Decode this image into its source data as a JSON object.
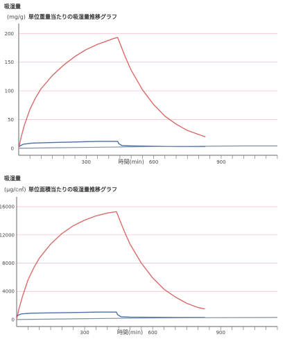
{
  "colors": {
    "red": "#d96a6a",
    "blue": "#4a6fa6",
    "gray": "#7f8fa0"
  },
  "chart_data": [
    {
      "type": "line",
      "ylabel_top": "吸湿量",
      "unit": "(mg/g)",
      "title": "単位重量当たりの吸湿量推移グラフ",
      "xlabel": "時間(min)",
      "xlim": [
        0,
        1150
      ],
      "ylim": [
        -5,
        210
      ],
      "yticks": [
        0,
        50,
        100,
        150,
        200
      ],
      "xticks": [
        300,
        600,
        900
      ],
      "series": [
        {
          "color": "red",
          "x": [
            0,
            10,
            25,
            50,
            75,
            100,
            150,
            200,
            250,
            300,
            350,
            400,
            420,
            440,
            475,
            500,
            550,
            600,
            650,
            700,
            750,
            800,
            830
          ],
          "y": [
            0,
            18,
            40,
            68,
            88,
            104,
            127,
            145,
            160,
            172,
            181,
            188,
            191,
            193,
            158,
            136,
            102,
            76,
            56,
            42,
            31,
            24,
            20
          ]
        },
        {
          "color": "blue",
          "x": [
            0,
            20,
            60,
            150,
            250,
            350,
            420,
            440,
            445,
            460,
            500,
            600,
            700,
            830
          ],
          "y": [
            3,
            7,
            9,
            10,
            11,
            12,
            12,
            12,
            8,
            4.5,
            4,
            3.5,
            3,
            3
          ]
        },
        {
          "color": "gray",
          "x": [
            0,
            200,
            400,
            600,
            800,
            1000,
            1150
          ],
          "y": [
            0,
            1,
            2,
            3,
            3.5,
            4,
            4
          ]
        }
      ]
    },
    {
      "type": "line",
      "ylabel_top": "吸湿量",
      "unit": "(μg/c㎡)",
      "title": "単位面積当たりの吸湿量推移グラフ",
      "xlabel": "時間(min)",
      "xlim": [
        0,
        1150
      ],
      "ylim": [
        -400,
        16800
      ],
      "yticks": [
        0,
        4000,
        8000,
        12000,
        16000
      ],
      "xticks": [
        300,
        600,
        900
      ],
      "series": [
        {
          "color": "red",
          "x": [
            0,
            10,
            25,
            50,
            75,
            100,
            150,
            200,
            250,
            300,
            350,
            400,
            420,
            440,
            475,
            500,
            550,
            600,
            650,
            700,
            750,
            800,
            830
          ],
          "y": [
            0,
            1500,
            3200,
            5600,
            7300,
            8700,
            10700,
            12200,
            13300,
            14100,
            14700,
            15100,
            15200,
            15300,
            12500,
            10700,
            8000,
            5900,
            4300,
            3200,
            2300,
            1700,
            1500
          ]
        },
        {
          "color": "blue",
          "x": [
            0,
            20,
            60,
            150,
            250,
            350,
            420,
            440,
            445,
            460,
            500,
            600,
            700,
            830
          ],
          "y": [
            500,
            800,
            900,
            950,
            1000,
            1050,
            1050,
            1050,
            700,
            400,
            350,
            320,
            300,
            300
          ]
        },
        {
          "color": "gray",
          "x": [
            0,
            200,
            400,
            600,
            800,
            1000,
            1150
          ],
          "y": [
            0,
            80,
            160,
            220,
            260,
            280,
            300
          ]
        }
      ]
    }
  ]
}
